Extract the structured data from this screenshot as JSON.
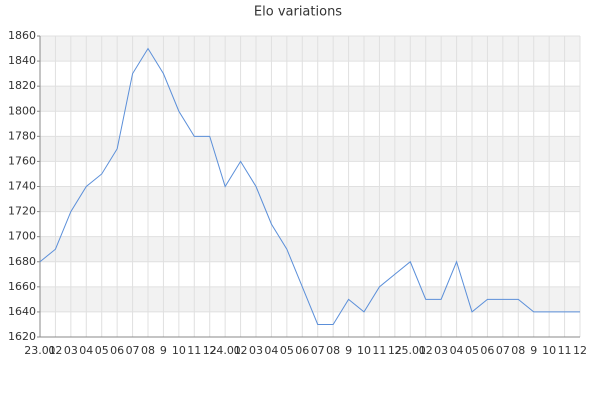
{
  "chart_data": {
    "type": "line",
    "title": "Elo variations",
    "categories": [
      "23.01",
      "02",
      "03",
      "04",
      "05",
      "06",
      "07",
      "08",
      "9",
      "10",
      "11",
      "12",
      "24.01",
      "02",
      "03",
      "04",
      "05",
      "06",
      "07",
      "08",
      "9",
      "10",
      "11",
      "12",
      "25.01",
      "02",
      "03",
      "04",
      "05",
      "06",
      "07",
      "08",
      "9",
      "10",
      "11",
      "12"
    ],
    "series": [
      {
        "name": "Elo",
        "color": "#5b8fd9",
        "values": [
          1680,
          1690,
          1720,
          1740,
          1750,
          1770,
          1830,
          1850,
          1830,
          1800,
          1780,
          1780,
          1740,
          1760,
          1740,
          1710,
          1690,
          1660,
          1630,
          1630,
          1650,
          1640,
          1660,
          1670,
          1680,
          1650,
          1650,
          1680,
          1640,
          1650,
          1650,
          1650,
          1640,
          1640,
          1640,
          1640
        ]
      }
    ],
    "ylim": [
      1620,
      1860
    ],
    "yticks": [
      1620,
      1640,
      1660,
      1680,
      1700,
      1720,
      1740,
      1760,
      1780,
      1800,
      1820,
      1840,
      1860
    ],
    "grid": true
  }
}
